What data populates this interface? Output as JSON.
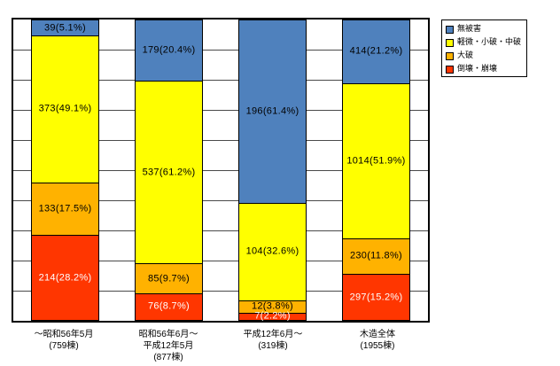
{
  "page": {
    "background": "#ffffff"
  },
  "legend": {
    "position": "top-right",
    "items": [
      {
        "label": "無被害",
        "color": "#4f81bd"
      },
      {
        "label": "軽微・小破・中破",
        "color": "#ffff00"
      },
      {
        "label": "大破",
        "color": "#ffb200"
      },
      {
        "label": "倒壊・崩壊",
        "color": "#ff3600"
      }
    ]
  },
  "chart_data": {
    "type": "bar",
    "subtype": "stacked-100-percent",
    "orientation": "vertical",
    "title": "",
    "xlabel": "",
    "ylabel": "",
    "y_axis": {
      "min_pct": 0,
      "max_pct": 100,
      "gridline_interval_pct": 10,
      "tick_labels_visible": false
    },
    "grid": true,
    "categories": [
      {
        "lines": [
          "～昭和56年5月",
          "(759棟)"
        ]
      },
      {
        "lines": [
          "昭和56年6月～",
          "平成12年5月",
          "(877棟)"
        ]
      },
      {
        "lines": [
          "平成12年6月～",
          "(319棟)"
        ]
      },
      {
        "lines": [
          "木造全体",
          "(1955棟)"
        ]
      }
    ],
    "category_totals": [
      759,
      877,
      319,
      1955
    ],
    "series": [
      {
        "name": "無被害",
        "color": "#4f81bd",
        "label_color": "#000000",
        "points": [
          {
            "value": 39,
            "pct": 5.1,
            "label": "39(5.1%)"
          },
          {
            "value": 179,
            "pct": 20.4,
            "label": "179(20.4%)"
          },
          {
            "value": 196,
            "pct": 61.4,
            "label": "196(61.4%)"
          },
          {
            "value": 414,
            "pct": 21.2,
            "label": "414(21.2%)"
          }
        ]
      },
      {
        "name": "軽微・小破・中破",
        "color": "#ffff00",
        "label_color": "#000000",
        "points": [
          {
            "value": 373,
            "pct": 49.1,
            "label": "373(49.1%)"
          },
          {
            "value": 537,
            "pct": 61.2,
            "label": "537(61.2%)"
          },
          {
            "value": 104,
            "pct": 32.6,
            "label": "104(32.6%)"
          },
          {
            "value": 1014,
            "pct": 51.9,
            "label": "1014(51.9%)"
          }
        ]
      },
      {
        "name": "大破",
        "color": "#ffb200",
        "label_color": "#000000",
        "points": [
          {
            "value": 133,
            "pct": 17.5,
            "label": "133(17.5%)"
          },
          {
            "value": 85,
            "pct": 9.7,
            "label": "85(9.7%)"
          },
          {
            "value": 12,
            "pct": 3.8,
            "label": "12(3.8%)"
          },
          {
            "value": 230,
            "pct": 11.8,
            "label": "230(11.8%)"
          }
        ]
      },
      {
        "name": "倒壊・崩壊",
        "color": "#ff3600",
        "label_color": "#ffffff",
        "points": [
          {
            "value": 214,
            "pct": 28.2,
            "label": "214(28.2%)"
          },
          {
            "value": 76,
            "pct": 8.7,
            "label": "76(8.7%)"
          },
          {
            "value": 7,
            "pct": 2.2,
            "label": "7(2.2%)"
          },
          {
            "value": 297,
            "pct": 15.2,
            "label": "297(15.2%)"
          }
        ]
      }
    ]
  }
}
